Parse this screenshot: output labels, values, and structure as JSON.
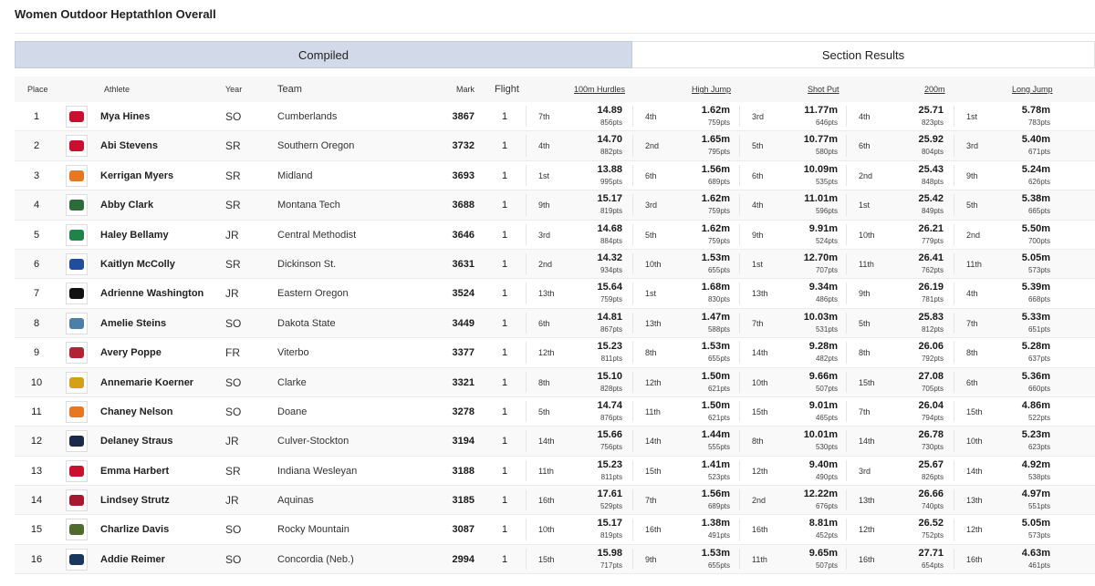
{
  "page_title": "Women Outdoor Heptathlon Overall",
  "tabs": {
    "compiled": "Compiled",
    "section": "Section Results"
  },
  "headers": {
    "place": "Place",
    "athlete": "Athlete",
    "year": "Year",
    "team": "Team",
    "mark": "Mark",
    "flight": "Flight",
    "events": [
      "100m Hurdles",
      "High Jump",
      "Shot Put",
      "200m",
      "Long Jump"
    ]
  },
  "colors": {
    "tab_active_bg": "#d2dae9",
    "header_bg": "#f7f7f7",
    "row_alt_bg": "#f9f9f9"
  },
  "rows": [
    {
      "place": "1",
      "logo": "cumberlands-logo",
      "logo_color": "#c8102e",
      "athlete": "Mya Hines",
      "year": "SO",
      "team": "Cumberlands",
      "mark": "3867",
      "flight": "1",
      "events": [
        {
          "place": "7th",
          "mark": "14.89",
          "pts": "856pts"
        },
        {
          "place": "4th",
          "mark": "1.62m",
          "pts": "759pts"
        },
        {
          "place": "3rd",
          "mark": "11.77m",
          "pts": "646pts"
        },
        {
          "place": "4th",
          "mark": "25.71",
          "pts": "823pts"
        },
        {
          "place": "1st",
          "mark": "5.78m",
          "pts": "783pts"
        }
      ]
    },
    {
      "place": "2",
      "logo": "southern-oregon-logo",
      "logo_color": "#c8102e",
      "athlete": "Abi Stevens",
      "year": "SR",
      "team": "Southern Oregon",
      "mark": "3732",
      "flight": "1",
      "events": [
        {
          "place": "4th",
          "mark": "14.70",
          "pts": "882pts"
        },
        {
          "place": "2nd",
          "mark": "1.65m",
          "pts": "795pts"
        },
        {
          "place": "5th",
          "mark": "10.77m",
          "pts": "580pts"
        },
        {
          "place": "6th",
          "mark": "25.92",
          "pts": "804pts"
        },
        {
          "place": "3rd",
          "mark": "5.40m",
          "pts": "671pts"
        }
      ]
    },
    {
      "place": "3",
      "logo": "midland-logo",
      "logo_color": "#e87722",
      "athlete": "Kerrigan Myers",
      "year": "SR",
      "team": "Midland",
      "mark": "3693",
      "flight": "1",
      "events": [
        {
          "place": "1st",
          "mark": "13.88",
          "pts": "995pts"
        },
        {
          "place": "6th",
          "mark": "1.56m",
          "pts": "689pts"
        },
        {
          "place": "6th",
          "mark": "10.09m",
          "pts": "535pts"
        },
        {
          "place": "2nd",
          "mark": "25.43",
          "pts": "848pts"
        },
        {
          "place": "9th",
          "mark": "5.24m",
          "pts": "626pts"
        }
      ]
    },
    {
      "place": "4",
      "logo": "montana-tech-logo",
      "logo_color": "#2e6b3a",
      "athlete": "Abby Clark",
      "year": "SR",
      "team": "Montana Tech",
      "mark": "3688",
      "flight": "1",
      "events": [
        {
          "place": "9th",
          "mark": "15.17",
          "pts": "819pts"
        },
        {
          "place": "3rd",
          "mark": "1.62m",
          "pts": "759pts"
        },
        {
          "place": "4th",
          "mark": "11.01m",
          "pts": "596pts"
        },
        {
          "place": "1st",
          "mark": "25.42",
          "pts": "849pts"
        },
        {
          "place": "5th",
          "mark": "5.38m",
          "pts": "665pts"
        }
      ]
    },
    {
      "place": "5",
      "logo": "central-methodist-logo",
      "logo_color": "#1e8449",
      "athlete": "Haley Bellamy",
      "year": "JR",
      "team": "Central Methodist",
      "mark": "3646",
      "flight": "1",
      "events": [
        {
          "place": "3rd",
          "mark": "14.68",
          "pts": "884pts"
        },
        {
          "place": "5th",
          "mark": "1.62m",
          "pts": "759pts"
        },
        {
          "place": "9th",
          "mark": "9.91m",
          "pts": "524pts"
        },
        {
          "place": "10th",
          "mark": "26.21",
          "pts": "779pts"
        },
        {
          "place": "2nd",
          "mark": "5.50m",
          "pts": "700pts"
        }
      ]
    },
    {
      "place": "6",
      "logo": "dickinson-st-logo",
      "logo_color": "#1f4e9c",
      "athlete": "Kaitlyn McColly",
      "year": "SR",
      "team": "Dickinson St.",
      "mark": "3631",
      "flight": "1",
      "events": [
        {
          "place": "2nd",
          "mark": "14.32",
          "pts": "934pts"
        },
        {
          "place": "10th",
          "mark": "1.53m",
          "pts": "655pts"
        },
        {
          "place": "1st",
          "mark": "12.70m",
          "pts": "707pts"
        },
        {
          "place": "11th",
          "mark": "26.41",
          "pts": "762pts"
        },
        {
          "place": "11th",
          "mark": "5.05m",
          "pts": "573pts"
        }
      ]
    },
    {
      "place": "7",
      "logo": "eastern-oregon-logo",
      "logo_color": "#111111",
      "athlete": "Adrienne Washington",
      "year": "JR",
      "team": "Eastern Oregon",
      "mark": "3524",
      "flight": "1",
      "events": [
        {
          "place": "13th",
          "mark": "15.64",
          "pts": "759pts"
        },
        {
          "place": "1st",
          "mark": "1.68m",
          "pts": "830pts"
        },
        {
          "place": "13th",
          "mark": "9.34m",
          "pts": "486pts"
        },
        {
          "place": "9th",
          "mark": "26.19",
          "pts": "781pts"
        },
        {
          "place": "4th",
          "mark": "5.39m",
          "pts": "668pts"
        }
      ]
    },
    {
      "place": "8",
      "logo": "dakota-state-logo",
      "logo_color": "#4a7fa8",
      "athlete": "Amelie Steins",
      "year": "SO",
      "team": "Dakota State",
      "mark": "3449",
      "flight": "1",
      "events": [
        {
          "place": "6th",
          "mark": "14.81",
          "pts": "867pts"
        },
        {
          "place": "13th",
          "mark": "1.47m",
          "pts": "588pts"
        },
        {
          "place": "7th",
          "mark": "10.03m",
          "pts": "531pts"
        },
        {
          "place": "5th",
          "mark": "25.83",
          "pts": "812pts"
        },
        {
          "place": "7th",
          "mark": "5.33m",
          "pts": "651pts"
        }
      ]
    },
    {
      "place": "9",
      "logo": "viterbo-logo",
      "logo_color": "#b22234",
      "athlete": "Avery Poppe",
      "year": "FR",
      "team": "Viterbo",
      "mark": "3377",
      "flight": "1",
      "events": [
        {
          "place": "12th",
          "mark": "15.23",
          "pts": "811pts"
        },
        {
          "place": "8th",
          "mark": "1.53m",
          "pts": "655pts"
        },
        {
          "place": "14th",
          "mark": "9.28m",
          "pts": "482pts"
        },
        {
          "place": "8th",
          "mark": "26.06",
          "pts": "792pts"
        },
        {
          "place": "8th",
          "mark": "5.28m",
          "pts": "637pts"
        }
      ]
    },
    {
      "place": "10",
      "logo": "clarke-logo",
      "logo_color": "#d4a017",
      "athlete": "Annemarie Koerner",
      "year": "SO",
      "team": "Clarke",
      "mark": "3321",
      "flight": "1",
      "events": [
        {
          "place": "8th",
          "mark": "15.10",
          "pts": "828pts"
        },
        {
          "place": "12th",
          "mark": "1.50m",
          "pts": "621pts"
        },
        {
          "place": "10th",
          "mark": "9.66m",
          "pts": "507pts"
        },
        {
          "place": "15th",
          "mark": "27.08",
          "pts": "705pts"
        },
        {
          "place": "6th",
          "mark": "5.36m",
          "pts": "660pts"
        }
      ]
    },
    {
      "place": "11",
      "logo": "doane-logo",
      "logo_color": "#e87722",
      "athlete": "Chaney Nelson",
      "year": "SO",
      "team": "Doane",
      "mark": "3278",
      "flight": "1",
      "events": [
        {
          "place": "5th",
          "mark": "14.74",
          "pts": "876pts"
        },
        {
          "place": "11th",
          "mark": "1.50m",
          "pts": "621pts"
        },
        {
          "place": "15th",
          "mark": "9.01m",
          "pts": "465pts"
        },
        {
          "place": "7th",
          "mark": "26.04",
          "pts": "794pts"
        },
        {
          "place": "15th",
          "mark": "4.86m",
          "pts": "522pts"
        }
      ]
    },
    {
      "place": "12",
      "logo": "culver-stockton-logo",
      "logo_color": "#1b2a4a",
      "athlete": "Delaney Straus",
      "year": "JR",
      "team": "Culver-Stockton",
      "mark": "3194",
      "flight": "1",
      "events": [
        {
          "place": "14th",
          "mark": "15.66",
          "pts": "756pts"
        },
        {
          "place": "14th",
          "mark": "1.44m",
          "pts": "555pts"
        },
        {
          "place": "8th",
          "mark": "10.01m",
          "pts": "530pts"
        },
        {
          "place": "14th",
          "mark": "26.78",
          "pts": "730pts"
        },
        {
          "place": "10th",
          "mark": "5.23m",
          "pts": "623pts"
        }
      ]
    },
    {
      "place": "13",
      "logo": "indiana-wesleyan-logo",
      "logo_color": "#c8102e",
      "athlete": "Emma Harbert",
      "year": "SR",
      "team": "Indiana Wesleyan",
      "mark": "3188",
      "flight": "1",
      "events": [
        {
          "place": "11th",
          "mark": "15.23",
          "pts": "811pts"
        },
        {
          "place": "15th",
          "mark": "1.41m",
          "pts": "523pts"
        },
        {
          "place": "12th",
          "mark": "9.40m",
          "pts": "490pts"
        },
        {
          "place": "3rd",
          "mark": "25.67",
          "pts": "826pts"
        },
        {
          "place": "14th",
          "mark": "4.92m",
          "pts": "538pts"
        }
      ]
    },
    {
      "place": "14",
      "logo": "aquinas-logo",
      "logo_color": "#a6192e",
      "athlete": "Lindsey Strutz",
      "year": "JR",
      "team": "Aquinas",
      "mark": "3185",
      "flight": "1",
      "events": [
        {
          "place": "16th",
          "mark": "17.61",
          "pts": "529pts"
        },
        {
          "place": "7th",
          "mark": "1.56m",
          "pts": "689pts"
        },
        {
          "place": "2nd",
          "mark": "12.22m",
          "pts": "676pts"
        },
        {
          "place": "13th",
          "mark": "26.66",
          "pts": "740pts"
        },
        {
          "place": "13th",
          "mark": "4.97m",
          "pts": "551pts"
        }
      ]
    },
    {
      "place": "15",
      "logo": "rocky-mountain-logo",
      "logo_color": "#4f6b2f",
      "athlete": "Charlize Davis",
      "year": "SO",
      "team": "Rocky Mountain",
      "mark": "3087",
      "flight": "1",
      "events": [
        {
          "place": "10th",
          "mark": "15.17",
          "pts": "819pts"
        },
        {
          "place": "16th",
          "mark": "1.38m",
          "pts": "491pts"
        },
        {
          "place": "16th",
          "mark": "8.81m",
          "pts": "452pts"
        },
        {
          "place": "12th",
          "mark": "26.52",
          "pts": "752pts"
        },
        {
          "place": "12th",
          "mark": "5.05m",
          "pts": "573pts"
        }
      ]
    },
    {
      "place": "16",
      "logo": "concordia-logo",
      "logo_color": "#1b365d",
      "athlete": "Addie Reimer",
      "year": "SO",
      "team": "Concordia (Neb.)",
      "mark": "2994",
      "flight": "1",
      "events": [
        {
          "place": "15th",
          "mark": "15.98",
          "pts": "717pts"
        },
        {
          "place": "9th",
          "mark": "1.53m",
          "pts": "655pts"
        },
        {
          "place": "11th",
          "mark": "9.65m",
          "pts": "507pts"
        },
        {
          "place": "16th",
          "mark": "27.71",
          "pts": "654pts"
        },
        {
          "place": "16th",
          "mark": "4.63m",
          "pts": "461pts"
        }
      ]
    }
  ]
}
